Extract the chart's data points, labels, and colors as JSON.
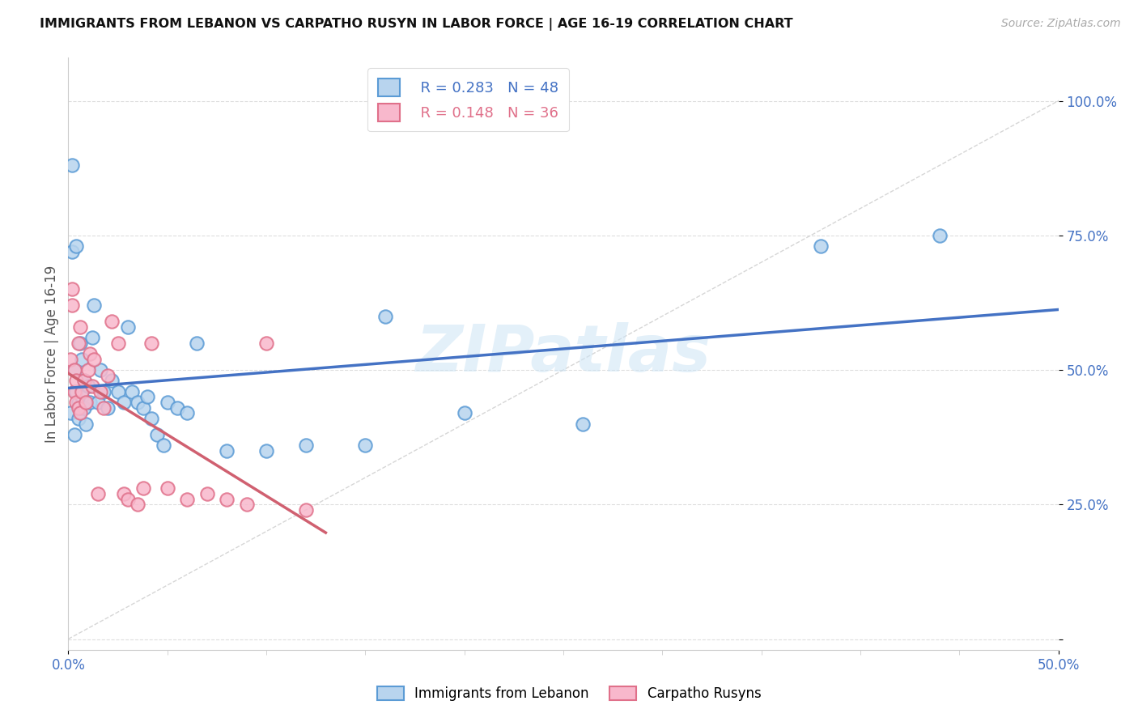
{
  "title": "IMMIGRANTS FROM LEBANON VS CARPATHO RUSYN IN LABOR FORCE | AGE 16-19 CORRELATION CHART",
  "source": "Source: ZipAtlas.com",
  "ylabel": "In Labor Force | Age 16-19",
  "xlim": [
    0.0,
    0.5
  ],
  "ylim": [
    -0.02,
    1.08
  ],
  "yticks": [
    0.0,
    0.25,
    0.5,
    0.75,
    1.0
  ],
  "ytick_labels": [
    "",
    "25.0%",
    "50.0%",
    "75.0%",
    "100.0%"
  ],
  "xticks": [
    0.0,
    0.5
  ],
  "xtick_labels": [
    "0.0%",
    "50.0%"
  ],
  "lebanon_R": 0.283,
  "lebanon_N": 48,
  "carpatho_R": 0.148,
  "carpatho_N": 36,
  "lebanon_color": "#b8d4ee",
  "carpatho_color": "#f8b8cc",
  "lebanon_edge_color": "#5b9bd5",
  "carpatho_edge_color": "#e0708a",
  "lebanon_line_color": "#4472c4",
  "carpatho_line_color": "#d06070",
  "ref_line_color": "#cccccc",
  "background_color": "#ffffff",
  "grid_color": "#dddddd",
  "axis_text_color": "#4472c4",
  "watermark": "ZIPatlas",
  "lebanon_x": [
    0.001,
    0.002,
    0.002,
    0.003,
    0.003,
    0.004,
    0.004,
    0.005,
    0.005,
    0.006,
    0.006,
    0.007,
    0.007,
    0.008,
    0.008,
    0.009,
    0.01,
    0.011,
    0.012,
    0.013,
    0.015,
    0.016,
    0.018,
    0.02,
    0.022,
    0.025,
    0.028,
    0.03,
    0.032,
    0.035,
    0.038,
    0.04,
    0.042,
    0.045,
    0.048,
    0.05,
    0.055,
    0.06,
    0.065,
    0.08,
    0.1,
    0.12,
    0.15,
    0.16,
    0.2,
    0.26,
    0.38,
    0.44
  ],
  "lebanon_y": [
    0.42,
    0.88,
    0.72,
    0.5,
    0.38,
    0.46,
    0.73,
    0.44,
    0.41,
    0.43,
    0.55,
    0.52,
    0.45,
    0.48,
    0.43,
    0.4,
    0.47,
    0.44,
    0.56,
    0.62,
    0.44,
    0.5,
    0.46,
    0.43,
    0.48,
    0.46,
    0.44,
    0.58,
    0.46,
    0.44,
    0.43,
    0.45,
    0.41,
    0.38,
    0.36,
    0.44,
    0.43,
    0.42,
    0.55,
    0.35,
    0.35,
    0.36,
    0.36,
    0.6,
    0.42,
    0.4,
    0.73,
    0.75
  ],
  "carpatho_x": [
    0.001,
    0.002,
    0.002,
    0.003,
    0.003,
    0.004,
    0.004,
    0.005,
    0.005,
    0.006,
    0.006,
    0.007,
    0.008,
    0.009,
    0.01,
    0.011,
    0.012,
    0.013,
    0.015,
    0.016,
    0.018,
    0.02,
    0.022,
    0.025,
    0.028,
    0.03,
    0.035,
    0.038,
    0.042,
    0.05,
    0.06,
    0.07,
    0.08,
    0.09,
    0.1,
    0.12
  ],
  "carpatho_y": [
    0.52,
    0.65,
    0.62,
    0.5,
    0.46,
    0.48,
    0.44,
    0.43,
    0.55,
    0.58,
    0.42,
    0.46,
    0.48,
    0.44,
    0.5,
    0.53,
    0.47,
    0.52,
    0.27,
    0.46,
    0.43,
    0.49,
    0.59,
    0.55,
    0.27,
    0.26,
    0.25,
    0.28,
    0.55,
    0.28,
    0.26,
    0.27,
    0.26,
    0.25,
    0.55,
    0.24
  ]
}
